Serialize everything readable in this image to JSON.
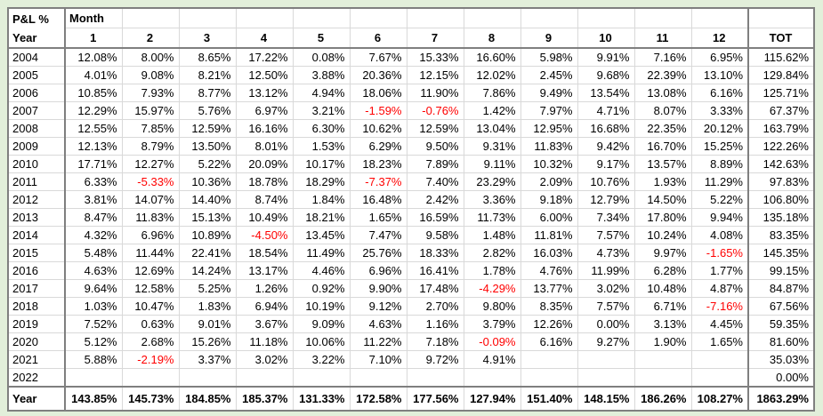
{
  "colors": {
    "page_background": "#e2efda",
    "cell_background": "#ffffff",
    "gridline": "#d9d9d9",
    "thick_border": "#7f7f7f",
    "negative_text": "#ff0000",
    "text": "#000000"
  },
  "table": {
    "corner_line1": "P&L %",
    "corner_line2": "Year",
    "month_label": "Month",
    "month_headers": [
      "1",
      "2",
      "3",
      "4",
      "5",
      "6",
      "7",
      "8",
      "9",
      "10",
      "11",
      "12"
    ],
    "tot_header": "TOT",
    "rows": [
      {
        "year": "2004",
        "values": [
          "12.08%",
          "8.00%",
          "8.65%",
          "17.22%",
          "0.08%",
          "7.67%",
          "15.33%",
          "16.60%",
          "5.98%",
          "9.91%",
          "7.16%",
          "6.95%"
        ],
        "total": "115.62%"
      },
      {
        "year": "2005",
        "values": [
          "4.01%",
          "9.08%",
          "8.21%",
          "12.50%",
          "3.88%",
          "20.36%",
          "12.15%",
          "12.02%",
          "2.45%",
          "9.68%",
          "22.39%",
          "13.10%"
        ],
        "total": "129.84%"
      },
      {
        "year": "2006",
        "values": [
          "10.85%",
          "7.93%",
          "8.77%",
          "13.12%",
          "4.94%",
          "18.06%",
          "11.90%",
          "7.86%",
          "9.49%",
          "13.54%",
          "13.08%",
          "6.16%"
        ],
        "total": "125.71%"
      },
      {
        "year": "2007",
        "values": [
          "12.29%",
          "15.97%",
          "5.76%",
          "6.97%",
          "3.21%",
          "-1.59%",
          "-0.76%",
          "1.42%",
          "7.97%",
          "4.71%",
          "8.07%",
          "3.33%"
        ],
        "total": "67.37%"
      },
      {
        "year": "2008",
        "values": [
          "12.55%",
          "7.85%",
          "12.59%",
          "16.16%",
          "6.30%",
          "10.62%",
          "12.59%",
          "13.04%",
          "12.95%",
          "16.68%",
          "22.35%",
          "20.12%"
        ],
        "total": "163.79%"
      },
      {
        "year": "2009",
        "values": [
          "12.13%",
          "8.79%",
          "13.50%",
          "8.01%",
          "1.53%",
          "6.29%",
          "9.50%",
          "9.31%",
          "11.83%",
          "9.42%",
          "16.70%",
          "15.25%"
        ],
        "total": "122.26%"
      },
      {
        "year": "2010",
        "values": [
          "17.71%",
          "12.27%",
          "5.22%",
          "20.09%",
          "10.17%",
          "18.23%",
          "7.89%",
          "9.11%",
          "10.32%",
          "9.17%",
          "13.57%",
          "8.89%"
        ],
        "total": "142.63%"
      },
      {
        "year": "2011",
        "values": [
          "6.33%",
          "-5.33%",
          "10.36%",
          "18.78%",
          "18.29%",
          "-7.37%",
          "7.40%",
          "23.29%",
          "2.09%",
          "10.76%",
          "1.93%",
          "11.29%"
        ],
        "total": "97.83%"
      },
      {
        "year": "2012",
        "values": [
          "3.81%",
          "14.07%",
          "14.40%",
          "8.74%",
          "1.84%",
          "16.48%",
          "2.42%",
          "3.36%",
          "9.18%",
          "12.79%",
          "14.50%",
          "5.22%"
        ],
        "total": "106.80%"
      },
      {
        "year": "2013",
        "values": [
          "8.47%",
          "11.83%",
          "15.13%",
          "10.49%",
          "18.21%",
          "1.65%",
          "16.59%",
          "11.73%",
          "6.00%",
          "7.34%",
          "17.80%",
          "9.94%"
        ],
        "total": "135.18%"
      },
      {
        "year": "2014",
        "values": [
          "4.32%",
          "6.96%",
          "10.89%",
          "-4.50%",
          "13.45%",
          "7.47%",
          "9.58%",
          "1.48%",
          "11.81%",
          "7.57%",
          "10.24%",
          "4.08%"
        ],
        "total": "83.35%"
      },
      {
        "year": "2015",
        "values": [
          "5.48%",
          "11.44%",
          "22.41%",
          "18.54%",
          "11.49%",
          "25.76%",
          "18.33%",
          "2.82%",
          "16.03%",
          "4.73%",
          "9.97%",
          "-1.65%"
        ],
        "total": "145.35%"
      },
      {
        "year": "2016",
        "values": [
          "4.63%",
          "12.69%",
          "14.24%",
          "13.17%",
          "4.46%",
          "6.96%",
          "16.41%",
          "1.78%",
          "4.76%",
          "11.99%",
          "6.28%",
          "1.77%"
        ],
        "total": "99.15%"
      },
      {
        "year": "2017",
        "values": [
          "9.64%",
          "12.58%",
          "5.25%",
          "1.26%",
          "0.92%",
          "9.90%",
          "17.48%",
          "-4.29%",
          "13.77%",
          "3.02%",
          "10.48%",
          "4.87%"
        ],
        "total": "84.87%"
      },
      {
        "year": "2018",
        "values": [
          "1.03%",
          "10.47%",
          "1.83%",
          "6.94%",
          "10.19%",
          "9.12%",
          "2.70%",
          "9.80%",
          "8.35%",
          "7.57%",
          "6.71%",
          "-7.16%"
        ],
        "total": "67.56%"
      },
      {
        "year": "2019",
        "values": [
          "7.52%",
          "0.63%",
          "9.01%",
          "3.67%",
          "9.09%",
          "4.63%",
          "1.16%",
          "3.79%",
          "12.26%",
          "0.00%",
          "3.13%",
          "4.45%"
        ],
        "total": "59.35%"
      },
      {
        "year": "2020",
        "values": [
          "5.12%",
          "2.68%",
          "15.26%",
          "11.18%",
          "10.06%",
          "11.22%",
          "7.18%",
          "-0.09%",
          "6.16%",
          "9.27%",
          "1.90%",
          "1.65%"
        ],
        "total": "81.60%"
      },
      {
        "year": "2021",
        "values": [
          "5.88%",
          "-2.19%",
          "3.37%",
          "3.02%",
          "3.22%",
          "7.10%",
          "9.72%",
          "4.91%",
          "",
          "",
          "",
          ""
        ],
        "total": "35.03%"
      },
      {
        "year": "2022",
        "values": [
          "",
          "",
          "",
          "",
          "",
          "",
          "",
          "",
          "",
          "",
          "",
          ""
        ],
        "total": "0.00%"
      }
    ],
    "footer": {
      "label": "Year",
      "values": [
        "143.85%",
        "145.73%",
        "184.85%",
        "185.37%",
        "131.33%",
        "172.58%",
        "177.56%",
        "127.94%",
        "151.40%",
        "148.15%",
        "186.26%",
        "108.27%"
      ],
      "total": "1863.29%"
    }
  }
}
